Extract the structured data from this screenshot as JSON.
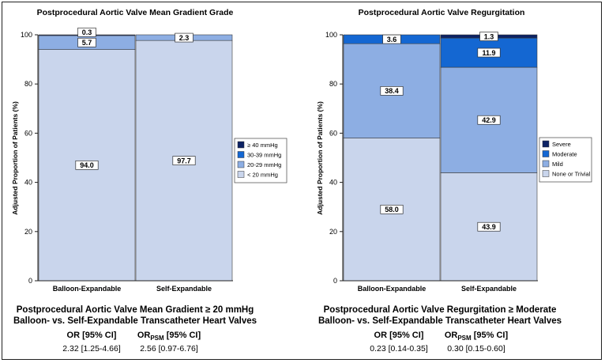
{
  "colors": {
    "c0": "#c9d5ec",
    "c1": "#8daee3",
    "c2": "#1467d2",
    "c3": "#0c2264",
    "axis": "#222222"
  },
  "chart_data": [
    {
      "type": "bar",
      "stacked": true,
      "title": "Postprocedural Aortic Valve Mean Gradient Grade",
      "ylabel": "Adjusted Proportion of Patients (%)",
      "ylim": [
        0,
        100
      ],
      "yticks": [
        "0",
        "20",
        "40",
        "60",
        "80",
        "100"
      ],
      "categories": [
        "Balloon-Expandable",
        "Self-Expandable"
      ],
      "legend_position": "right",
      "series": [
        {
          "name": "< 20 mmHg",
          "color_key": "c0",
          "values": [
            94.0,
            97.7
          ],
          "labels": [
            "94.0",
            "97.7"
          ]
        },
        {
          "name": "20-29 mmHg",
          "color_key": "c1",
          "values": [
            5.7,
            2.3
          ],
          "labels": [
            "5.7",
            "2.3"
          ]
        },
        {
          "name": "30-39 mmHg",
          "color_key": "c2",
          "values": [
            0,
            0
          ],
          "labels": [
            "",
            ""
          ]
        },
        {
          "name": "≥ 40 mmHg",
          "color_key": "c3",
          "values": [
            0.3,
            0
          ],
          "labels": [
            "0.3",
            ""
          ]
        }
      ]
    },
    {
      "type": "bar",
      "stacked": true,
      "title": "Postprocedural Aortic Valve Regurgitation",
      "ylabel": "Adjusted Proportion of Patients (%)",
      "ylim": [
        0,
        100
      ],
      "yticks": [
        "0",
        "20",
        "40",
        "60",
        "80",
        "100"
      ],
      "categories": [
        "Balloon-Expandable",
        "Self-Expandable"
      ],
      "legend_position": "right",
      "series": [
        {
          "name": "None or Trivial",
          "color_key": "c0",
          "values": [
            58.0,
            43.9
          ],
          "labels": [
            "58.0",
            "43.9"
          ]
        },
        {
          "name": "Mild",
          "color_key": "c1",
          "values": [
            38.4,
            42.9
          ],
          "labels": [
            "38.4",
            "42.9"
          ]
        },
        {
          "name": "Moderate",
          "color_key": "c2",
          "values": [
            3.6,
            11.9
          ],
          "labels": [
            "3.6",
            "11.9"
          ]
        },
        {
          "name": "Severe",
          "color_key": "c3",
          "values": [
            0,
            1.3
          ],
          "labels": [
            "",
            "1.3"
          ]
        }
      ]
    }
  ],
  "summaries": [
    {
      "line1": "Postprocedural Aortic Valve Mean Gradient ≥ 20 mmHg",
      "line2": "Balloon- vs. Self-Expandable Transcatheter Heart Valves",
      "or_head": "OR [95% CI]",
      "orpsm_head_main": "OR",
      "orpsm_head_sub": "PSM",
      "orpsm_head_rest": " [95% CI]",
      "or_value": "2.32 [1.25-4.66]",
      "orpsm_value": "2.56 [0.97-6.76]"
    },
    {
      "line1": "Postprocedural Aortic Valve Regurgitation ≥ Moderate",
      "line2": "Balloon- vs. Self-Expandable Transcatheter Heart Valves",
      "or_head": "OR [95% CI]",
      "orpsm_head_main": "OR",
      "orpsm_head_sub": "PSM",
      "orpsm_head_rest": " [95% CI]",
      "or_value": "0.23 [0.14-0.35]",
      "orpsm_value": "0.30 [0.15-0.60]"
    }
  ]
}
